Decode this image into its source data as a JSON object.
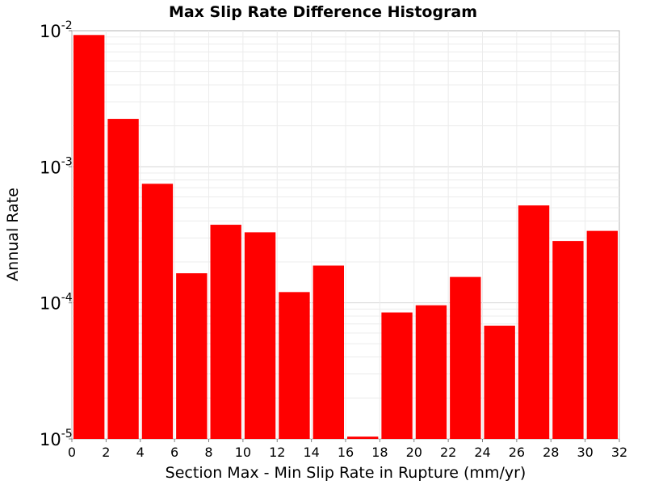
{
  "chart_data": {
    "type": "bar",
    "title": "Max Slip Rate Difference Histogram",
    "xlabel": "Section Max - Min Slip Rate in Rupture (mm/yr)",
    "ylabel": "Annual Rate",
    "yscale": "log",
    "xlim": [
      0,
      32
    ],
    "ylim": [
      1e-05,
      0.01
    ],
    "bin_width": 2,
    "x_ticks": [
      "0",
      "2",
      "4",
      "6",
      "8",
      "10",
      "12",
      "14",
      "16",
      "18",
      "20",
      "22",
      "24",
      "26",
      "28",
      "30",
      "32"
    ],
    "y_ticks": [
      {
        "base": "10",
        "exp": "-5"
      },
      {
        "base": "10",
        "exp": "-4"
      },
      {
        "base": "10",
        "exp": "-3"
      },
      {
        "base": "10",
        "exp": "-2"
      }
    ],
    "bin_starts": [
      0,
      2,
      4,
      6,
      8,
      10,
      12,
      14,
      16,
      18,
      20,
      22,
      24,
      26,
      28,
      30
    ],
    "values": [
      0.0093,
      0.00225,
      0.00075,
      0.000165,
      0.000375,
      0.00033,
      0.00012,
      0.000188,
      1.04e-05,
      8.5e-05,
      9.6e-05,
      0.000155,
      6.8e-05,
      0.00052,
      0.000285,
      0.000338
    ],
    "bar_color": "#ff0000",
    "grid": true,
    "legend": false
  }
}
